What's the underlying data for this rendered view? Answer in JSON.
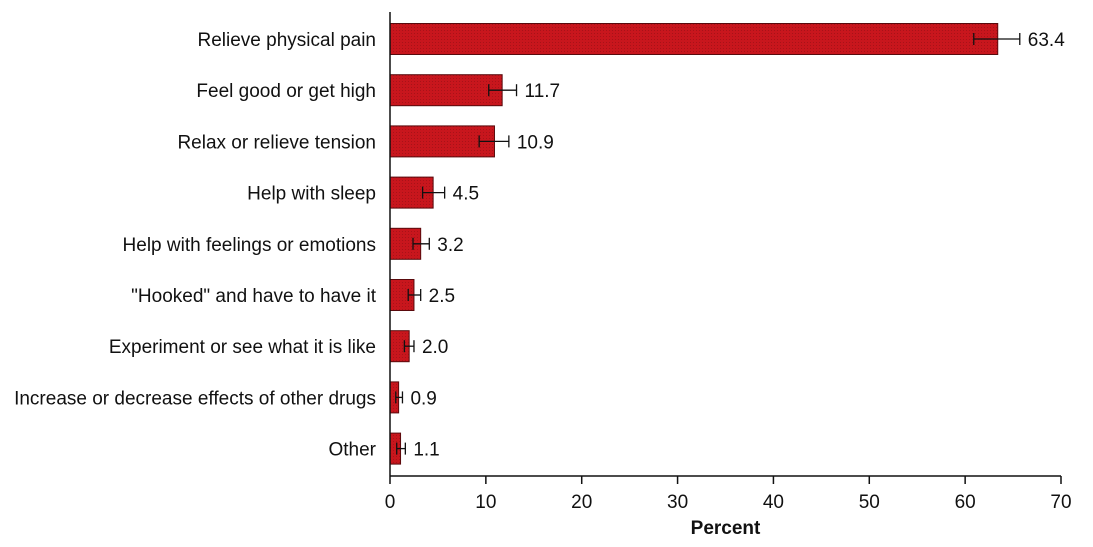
{
  "chart_data": {
    "type": "bar",
    "orientation": "horizontal",
    "categories": [
      "Relieve physical pain",
      "Feel good or get high",
      "Relax or relieve tension",
      "Help with sleep",
      "Help with feelings or emotions",
      "\"Hooked\" and have to have it",
      "Experiment or see what it is like",
      "Increase or decrease effects of other drugs",
      "Other"
    ],
    "values": [
      63.4,
      11.7,
      10.9,
      4.5,
      3.2,
      2.5,
      2.0,
      0.9,
      1.1
    ],
    "value_labels": [
      "63.4",
      "11.7",
      "10.9",
      "4.5",
      "3.2",
      "2.5",
      "2.0",
      "0.9",
      "1.1"
    ],
    "error_low": [
      60.9,
      10.3,
      9.3,
      3.4,
      2.4,
      1.9,
      1.5,
      0.6,
      0.7
    ],
    "error_high": [
      65.7,
      13.2,
      12.4,
      5.7,
      4.1,
      3.2,
      2.5,
      1.3,
      1.6
    ],
    "xlabel": "Percent",
    "ylabel": "",
    "xlim": [
      0,
      70
    ],
    "xticks": [
      0,
      10,
      20,
      30,
      40,
      50,
      60,
      70
    ],
    "bar_color": "#c8161d",
    "grid": false,
    "legend": "none"
  }
}
